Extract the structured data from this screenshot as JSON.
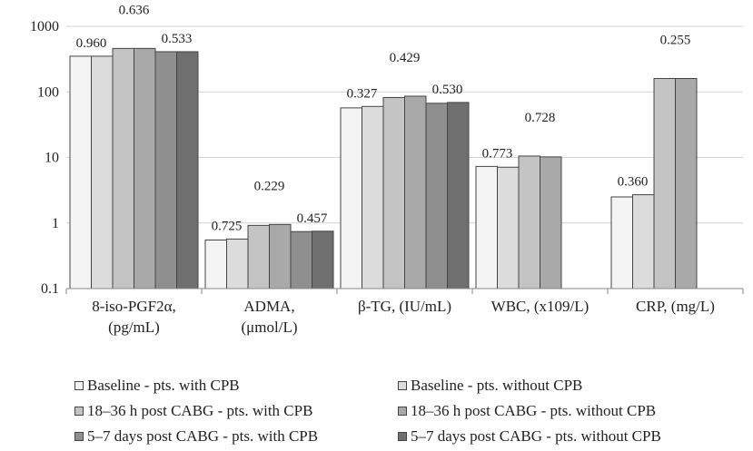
{
  "chart_data": {
    "type": "bar",
    "yscale": "log",
    "ylim": [
      0.1,
      1000
    ],
    "yticks": [
      "0.1",
      "1",
      "10",
      "100",
      "1000"
    ],
    "categories": [
      [
        "8-iso-PGF2α,",
        "(pg/mL)"
      ],
      [
        "ADMA,",
        "(μmol/L)"
      ],
      [
        "β-TG, (IU/mL)"
      ],
      [
        "WBC, (x109/L)"
      ],
      [
        "CRP, (mg/L)"
      ]
    ],
    "series": [
      {
        "name": "Baseline - pts. with CPB",
        "color": "#f4f4f4",
        "values": [
          350,
          0.55,
          57,
          7.3,
          2.5
        ]
      },
      {
        "name": "Baseline - pts. without CPB",
        "color": "#dcdcdc",
        "values": [
          350,
          0.57,
          60,
          7.1,
          2.7
        ]
      },
      {
        "name": "18–36 h post CABG - pts. with CPB",
        "color": "#c4c4c4",
        "values": [
          460,
          0.92,
          82,
          10.5,
          160
        ]
      },
      {
        "name": "18–36 h post CABG - pts. without CPB",
        "color": "#a9a9a9",
        "values": [
          460,
          0.95,
          86,
          10.2,
          160
        ]
      },
      {
        "name": "5–7 days post CABG - pts. with CPB",
        "color": "#8f8f8f",
        "values": [
          410,
          0.74,
          67,
          null,
          null
        ]
      },
      {
        "name": "5–7 days post CABG - pts. without CPB",
        "color": "#6f6f6f",
        "values": [
          410,
          0.75,
          69,
          null,
          null
        ]
      }
    ],
    "p_values": [
      {
        "category": 0,
        "pair": 0,
        "label": "0.960"
      },
      {
        "category": 0,
        "pair": 1,
        "label": "0.636"
      },
      {
        "category": 0,
        "pair": 2,
        "label": "0.533"
      },
      {
        "category": 1,
        "pair": 0,
        "label": "0.725"
      },
      {
        "category": 1,
        "pair": 1,
        "label": "0.229"
      },
      {
        "category": 1,
        "pair": 2,
        "label": "0.457"
      },
      {
        "category": 2,
        "pair": 0,
        "label": "0.327"
      },
      {
        "category": 2,
        "pair": 1,
        "label": "0.429"
      },
      {
        "category": 2,
        "pair": 2,
        "label": "0.530"
      },
      {
        "category": 3,
        "pair": 0,
        "label": "0.773"
      },
      {
        "category": 3,
        "pair": 1,
        "label": "0.728"
      },
      {
        "category": 4,
        "pair": 0,
        "label": "0.360"
      },
      {
        "category": 4,
        "pair": 1,
        "label": "0.255"
      }
    ],
    "grid": true,
    "legend_position": "bottom",
    "title": "",
    "xlabel": "",
    "ylabel": ""
  }
}
